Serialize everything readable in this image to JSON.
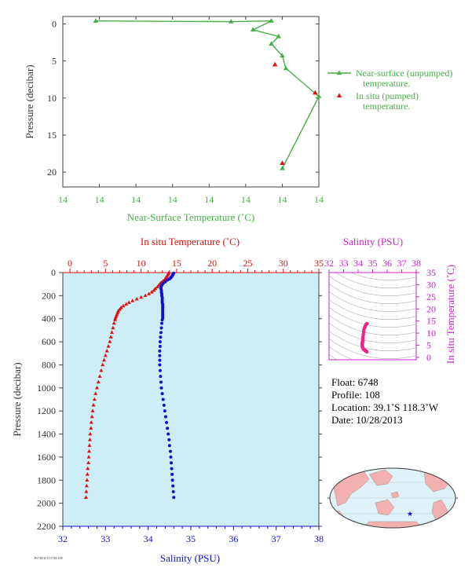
{
  "colors": {
    "green": "#48b048",
    "red": "#dd1111",
    "blue": "#1111cc",
    "magenta": "#cc22cc",
    "axis_dark": "#404040",
    "panel_bg": "#cdeef6",
    "land": "#f2b0b0",
    "ocean": "#dff2f8"
  },
  "info": {
    "float": "Float:  6748",
    "profile": "Profile:  108",
    "location": "Location:  39.1˚S  118.3˚W",
    "date": "Date:  10/28/2013"
  },
  "footer_code": "P6748/2013 6748/108",
  "chart_data": [
    {
      "type": "line",
      "title": "",
      "xlabel": "Near-Surface Temperature (˚C)",
      "ylabel": "Pressure (decibar)",
      "xlim": [
        13.5,
        14.2
      ],
      "ylim": [
        22,
        -1
      ],
      "y_inverted": true,
      "x_tick_labels": [
        "14",
        "14",
        "14",
        "14",
        "14",
        "14",
        "14",
        "14"
      ],
      "y_ticks": [
        0,
        5,
        10,
        15,
        20
      ],
      "legend": {
        "placement": "right",
        "entries": [
          {
            "line1": "Near-surface (unpumped)",
            "line2": "temperature."
          },
          {
            "line1": "In situ (pumped)",
            "line2": "temperature."
          }
        ]
      },
      "series": [
        {
          "name": "Near-surface (unpumped) temperature.",
          "x": [
            13.59,
            13.96,
            14.07,
            14.02,
            14.09,
            14.07,
            14.1,
            14.11,
            14.2,
            14.1
          ],
          "y": [
            -0.4,
            -0.3,
            -0.4,
            0.8,
            1.7,
            2.7,
            4.3,
            6.0,
            9.8,
            19.5
          ]
        },
        {
          "name": "In situ (pumped) temperature.",
          "x": [
            14.08,
            14.19,
            14.1
          ],
          "y": [
            5.5,
            9.3,
            18.8
          ]
        }
      ]
    },
    {
      "type": "line",
      "title": "",
      "x_top_label": "In situ Temperature (˚C)",
      "x_bottom_label": "Salinity (PSU)",
      "ylabel": "Pressure (decibar)",
      "temperature_ticks": [
        0,
        5,
        10,
        15,
        20,
        25,
        30,
        35
      ],
      "salinity_ticks": [
        32,
        33,
        34,
        35,
        36,
        37,
        38
      ],
      "pressure_ticks": [
        0,
        200,
        400,
        600,
        800,
        1000,
        1200,
        1400,
        1600,
        1800,
        2000,
        2200
      ],
      "temperature_lim": [
        -1,
        35
      ],
      "salinity_lim": [
        32,
        38
      ],
      "pressure_lim": [
        2200,
        0
      ],
      "series": [
        {
          "name": "In situ Temperature",
          "pressure": [
            5,
            15,
            25,
            35,
            45,
            55,
            65,
            75,
            85,
            95,
            110,
            125,
            140,
            155,
            170,
            185,
            200,
            215,
            230,
            245,
            260,
            275,
            290,
            305,
            320,
            335,
            350,
            365,
            380,
            395,
            410,
            440,
            480,
            520,
            560,
            600,
            640,
            680,
            720,
            760,
            800,
            850,
            900,
            950,
            1000,
            1050,
            1100,
            1150,
            1200,
            1250,
            1300,
            1350,
            1400,
            1450,
            1500,
            1550,
            1600,
            1650,
            1700,
            1750,
            1800,
            1850,
            1900,
            1950
          ],
          "values": [
            13.9,
            13.8,
            13.7,
            13.6,
            13.5,
            13.4,
            13.3,
            13.1,
            12.9,
            12.7,
            12.5,
            12.3,
            12.0,
            11.8,
            11.5,
            11.1,
            10.6,
            10.0,
            9.4,
            8.8,
            8.3,
            7.9,
            7.5,
            7.2,
            7.0,
            6.8,
            6.7,
            6.6,
            6.5,
            6.4,
            6.35,
            6.2,
            6.05,
            5.9,
            5.75,
            5.6,
            5.4,
            5.2,
            5.0,
            4.8,
            4.6,
            4.4,
            4.2,
            4.0,
            3.8,
            3.6,
            3.45,
            3.3,
            3.2,
            3.1,
            3.0,
            2.95,
            2.85,
            2.8,
            2.75,
            2.7,
            2.65,
            2.6,
            2.5,
            2.45,
            2.4,
            2.35,
            2.3,
            2.25
          ]
        },
        {
          "name": "Salinity",
          "pressure": [
            5,
            15,
            25,
            35,
            45,
            55,
            65,
            80,
            95,
            110,
            125,
            140,
            155,
            170,
            185,
            200,
            215,
            230,
            245,
            260,
            275,
            290,
            305,
            320,
            335,
            350,
            365,
            380,
            395,
            410,
            440,
            480,
            520,
            560,
            600,
            640,
            680,
            720,
            760,
            800,
            850,
            900,
            950,
            1000,
            1050,
            1100,
            1150,
            1200,
            1250,
            1300,
            1350,
            1400,
            1450,
            1500,
            1550,
            1600,
            1650,
            1700,
            1750,
            1800,
            1850,
            1900,
            1950
          ],
          "values": [
            34.6,
            34.58,
            34.57,
            34.55,
            34.53,
            34.5,
            34.45,
            34.4,
            34.35,
            34.32,
            34.3,
            34.3,
            34.31,
            34.31,
            34.32,
            34.32,
            34.33,
            34.33,
            34.33,
            34.33,
            34.34,
            34.34,
            34.34,
            34.34,
            34.34,
            34.34,
            34.34,
            34.34,
            34.34,
            34.33,
            34.32,
            34.31,
            34.3,
            34.29,
            34.28,
            34.28,
            34.27,
            34.27,
            34.27,
            34.27,
            34.28,
            34.29,
            34.3,
            34.31,
            34.33,
            34.35,
            34.37,
            34.39,
            34.41,
            34.43,
            34.45,
            34.47,
            34.49,
            34.5,
            34.52,
            34.53,
            34.54,
            34.55,
            34.56,
            34.57,
            34.58,
            34.59,
            34.6
          ]
        }
      ]
    },
    {
      "type": "scatter",
      "title": "",
      "x_top_label": "Salinity (PSU)",
      "y_right_label": "In situ Temperature (˚C)",
      "x_ticks": [
        32,
        33,
        34,
        35,
        36,
        37,
        38
      ],
      "y_ticks": [
        0,
        5,
        10,
        15,
        20,
        25,
        30,
        35
      ],
      "xlim": [
        32,
        38
      ],
      "ylim": [
        -1,
        35
      ],
      "series": [
        {
          "name": "T-S",
          "x": [
            34.6,
            34.55,
            34.5,
            34.45,
            34.4,
            34.38,
            34.36,
            34.34,
            34.33,
            34.33,
            34.32,
            34.31,
            34.3,
            34.29,
            34.28,
            34.28,
            34.28,
            34.29,
            34.31,
            34.33,
            34.36,
            34.4,
            34.45,
            34.5,
            34.55,
            34.6
          ],
          "y": [
            13.9,
            13.5,
            13.0,
            12.3,
            11.5,
            10.5,
            9.5,
            8.5,
            7.8,
            7.2,
            6.8,
            6.5,
            6.2,
            5.9,
            5.6,
            5.3,
            5.0,
            4.6,
            4.2,
            3.8,
            3.5,
            3.2,
            3.0,
            2.8,
            2.6,
            2.3
          ]
        }
      ]
    }
  ]
}
